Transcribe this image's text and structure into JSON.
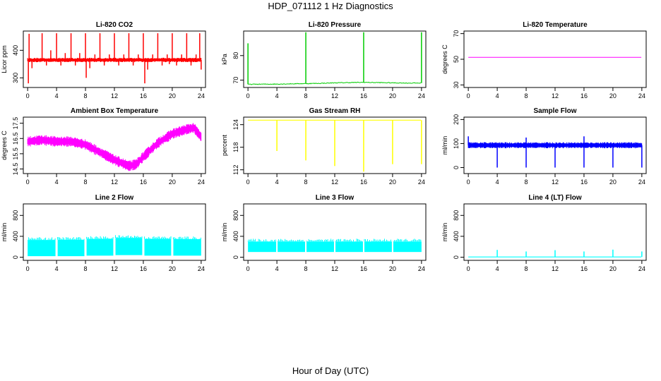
{
  "title": "HDP_071112  1 Hz Diagnostics",
  "xlabel": "Hour of Day (UTC)",
  "chart_data": [
    {
      "id": "co2",
      "type": "line",
      "title": "Li-820 CO2",
      "ylabel": "Licor ppm",
      "color": "#ff0000",
      "xlim": [
        -0.6,
        24.6
      ],
      "ylim": [
        265,
        470
      ],
      "yticks": [
        300,
        400
      ],
      "xticks": [
        0,
        4,
        8,
        12,
        16,
        20,
        24
      ],
      "series": [
        {
          "name": "CO2",
          "baseline": 365,
          "band": 8,
          "noise": 4,
          "spikes_up": [
            [
              2,
              462
            ],
            [
              4,
              462
            ],
            [
              6,
              462
            ],
            [
              8,
              462
            ],
            [
              10,
              462
            ],
            [
              12,
              462
            ],
            [
              14,
              462
            ],
            [
              16,
              462
            ],
            [
              18,
              462
            ],
            [
              20,
              462
            ],
            [
              22,
              462
            ],
            [
              23.8,
              462
            ],
            [
              0.2,
              460
            ],
            [
              3.2,
              400
            ],
            [
              5.2,
              390
            ],
            [
              7.2,
              390
            ],
            [
              9.3,
              385
            ],
            [
              11.3,
              385
            ],
            [
              13.3,
              385
            ],
            [
              15.3,
              385
            ],
            [
              17.3,
              385
            ],
            [
              19.3,
              385
            ],
            [
              21.3,
              385
            ],
            [
              23.3,
              385
            ]
          ],
          "spikes_down": [
            [
              0.1,
              280
            ],
            [
              0.6,
              335
            ],
            [
              2.6,
              345
            ],
            [
              4.6,
              345
            ],
            [
              6.6,
              345
            ],
            [
              8.1,
              300
            ],
            [
              8.6,
              335
            ],
            [
              10.6,
              345
            ],
            [
              12.6,
              345
            ],
            [
              14.6,
              345
            ],
            [
              16.2,
              280
            ],
            [
              16.6,
              330
            ],
            [
              18.6,
              345
            ],
            [
              19.6,
              350
            ],
            [
              20.6,
              345
            ],
            [
              22.6,
              345
            ],
            [
              24,
              330
            ]
          ]
        }
      ]
    },
    {
      "id": "pressure",
      "type": "line",
      "title": "Li-820 Pressure",
      "ylabel": "kPa",
      "color": "#00cc00",
      "xlim": [
        -0.6,
        24.6
      ],
      "ylim": [
        67,
        90
      ],
      "yticks": [
        70,
        80
      ],
      "xticks": [
        0,
        4,
        8,
        12,
        16,
        20,
        24
      ],
      "series": [
        {
          "name": "Pressure",
          "points": [
            [
              0,
              68.3
            ],
            [
              4,
              68.4
            ],
            [
              8,
              68.6
            ],
            [
              10,
              68.7
            ],
            [
              12,
              68.9
            ],
            [
              14,
              69.0
            ],
            [
              16,
              69.1
            ],
            [
              18,
              69.0
            ],
            [
              20,
              68.9
            ],
            [
              22,
              68.8
            ],
            [
              24,
              68.8
            ]
          ],
          "spikes_up": [
            [
              0,
              85
            ],
            [
              8,
              89.5
            ],
            [
              16,
              89.5
            ],
            [
              24,
              89.5
            ]
          ]
        }
      ]
    },
    {
      "id": "licor-temp",
      "type": "line",
      "title": "Li-820 Temperature",
      "ylabel": "degrees C",
      "color": "#ff00ff",
      "xlim": [
        -0.6,
        24.6
      ],
      "ylim": [
        28,
        72
      ],
      "yticks": [
        30,
        50,
        70
      ],
      "xticks": [
        0,
        4,
        8,
        12,
        16,
        20,
        24
      ],
      "series": [
        {
          "name": "Temperature",
          "points": [
            [
              0,
              51.5
            ],
            [
              24,
              51.5
            ]
          ]
        }
      ]
    },
    {
      "id": "box-temp",
      "type": "band",
      "title": "Ambient Box Temperature",
      "ylabel": "degrees C",
      "color": "#ff00ff",
      "xlim": [
        -0.6,
        24.6
      ],
      "ylim": [
        14.2,
        17.9
      ],
      "yticks": [
        14.5,
        15.5,
        16.5,
        17.5
      ],
      "xticks": [
        0,
        4,
        8,
        12,
        16,
        20,
        24
      ],
      "series": [
        {
          "name": "Box Temp",
          "center": [
            [
              0,
              16.3
            ],
            [
              2,
              16.4
            ],
            [
              4,
              16.3
            ],
            [
              6,
              16.3
            ],
            [
              8,
              16.1
            ],
            [
              10,
              15.6
            ],
            [
              12,
              15.1
            ],
            [
              14,
              14.7
            ],
            [
              15,
              14.8
            ],
            [
              16,
              15.3
            ],
            [
              18,
              16.2
            ],
            [
              20,
              16.8
            ],
            [
              22,
              17.1
            ],
            [
              23,
              17.2
            ],
            [
              24,
              16.6
            ]
          ],
          "halfwidth": 0.3
        }
      ]
    },
    {
      "id": "rh",
      "type": "line",
      "title": "Gas Stream RH",
      "ylabel": "percent",
      "color": "#ffff00",
      "xlim": [
        -0.6,
        24.6
      ],
      "ylim": [
        111,
        126
      ],
      "yticks": [
        112,
        118,
        124
      ],
      "xticks": [
        0,
        4,
        8,
        12,
        16,
        20,
        24
      ],
      "series": [
        {
          "name": "RH",
          "baseline": 125.2,
          "dips": [
            [
              4,
              117
            ],
            [
              8,
              114.5
            ],
            [
              12,
              113
            ],
            [
              16,
              111.5
            ],
            [
              20,
              113.5
            ],
            [
              24,
              113.5
            ]
          ]
        }
      ]
    },
    {
      "id": "sample-flow",
      "type": "band",
      "title": "Sample Flow",
      "ylabel": "ml/min",
      "color": "#0000ff",
      "xlim": [
        -0.6,
        24.6
      ],
      "ylim": [
        -25,
        210
      ],
      "yticks": [
        0,
        100,
        200
      ],
      "xticks": [
        0,
        4,
        8,
        12,
        16,
        20,
        24
      ],
      "series": [
        {
          "name": "Sample Flow",
          "center": [
            [
              0,
              93
            ],
            [
              24,
              93
            ]
          ],
          "halfwidth": 11,
          "spikes_up": [
            [
              0,
              130
            ],
            [
              8,
              125
            ],
            [
              16,
              130
            ]
          ],
          "dips": [
            [
              4,
              0
            ],
            [
              8,
              0
            ],
            [
              12,
              0
            ],
            [
              16,
              0
            ],
            [
              20,
              0
            ],
            [
              24,
              0
            ]
          ]
        }
      ]
    },
    {
      "id": "line2",
      "type": "band",
      "title": "Line 2 Flow",
      "ylabel": "ml/min",
      "color": "#00ffff",
      "xlim": [
        -0.6,
        24.6
      ],
      "ylim": [
        -60,
        1020
      ],
      "yticks": [
        0,
        400,
        800
      ],
      "xticks": [
        0,
        4,
        8,
        12,
        16,
        20,
        24
      ],
      "series": [
        {
          "name": "Line 2",
          "segments": [
            [
              0,
              3.85,
              20,
              330
            ],
            [
              4.15,
              7.85,
              20,
              335
            ],
            [
              8.15,
              11.85,
              30,
              350
            ],
            [
              12.15,
              15.85,
              40,
              370
            ],
            [
              16.15,
              19.85,
              30,
              350
            ],
            [
              20.15,
              24,
              30,
              345
            ]
          ]
        }
      ]
    },
    {
      "id": "line3",
      "type": "band",
      "title": "Line 3 Flow",
      "ylabel": "ml/min",
      "color": "#00ffff",
      "xlim": [
        -0.6,
        24.6
      ],
      "ylim": [
        -60,
        1020
      ],
      "yticks": [
        0,
        400,
        800
      ],
      "xticks": [
        0,
        4,
        8,
        12,
        16,
        20,
        24
      ],
      "series": [
        {
          "name": "Line 3",
          "segments": [
            [
              0,
              3.9,
              100,
              300
            ],
            [
              4.1,
              7.9,
              100,
              300
            ],
            [
              8.1,
              11.9,
              100,
              300
            ],
            [
              12.1,
              15.9,
              100,
              300
            ],
            [
              16.1,
              19.9,
              100,
              300
            ],
            [
              20.1,
              24,
              100,
              300
            ]
          ]
        }
      ]
    },
    {
      "id": "line4",
      "type": "line",
      "title": "Line 4 (LT) Flow",
      "ylabel": "ml/min",
      "color": "#00ffff",
      "xlim": [
        -0.6,
        24.6
      ],
      "ylim": [
        -60,
        1020
      ],
      "yticks": [
        0,
        400,
        800
      ],
      "xticks": [
        0,
        4,
        8,
        12,
        16,
        20,
        24
      ],
      "series": [
        {
          "name": "Line 4",
          "baseline": 5,
          "spikes_up": [
            [
              4,
              140
            ],
            [
              8,
              110
            ],
            [
              12,
              135
            ],
            [
              16,
              110
            ],
            [
              20,
              145
            ],
            [
              24,
              110
            ]
          ]
        }
      ]
    }
  ]
}
